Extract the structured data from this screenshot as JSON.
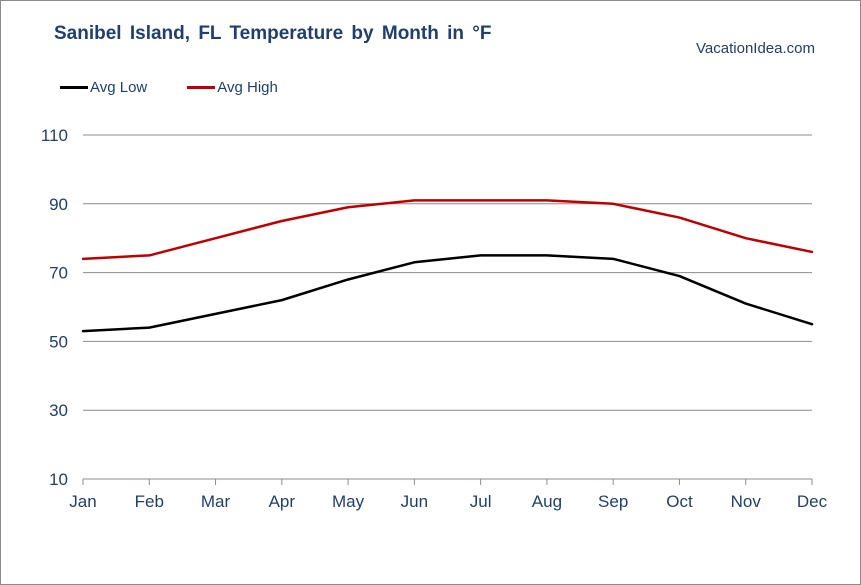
{
  "title": "Sanibel Island, FL Temperature  by Month  in °F",
  "source": "VacationIdea.com",
  "colors": {
    "avg_low": "#000000",
    "avg_high": "#c00000",
    "grid": "#8c8c8c",
    "text": "#1f3f6e"
  },
  "chart_data": {
    "type": "line",
    "categories": [
      "Jan",
      "Feb",
      "Mar",
      "Apr",
      "May",
      "Jun",
      "Jul",
      "Aug",
      "Sep",
      "Oct",
      "Nov",
      "Dec"
    ],
    "series": [
      {
        "name": "Avg Low",
        "values": [
          53,
          54,
          58,
          62,
          68,
          73,
          75,
          75,
          74,
          69,
          61,
          55
        ]
      },
      {
        "name": "Avg High",
        "values": [
          74,
          75,
          80,
          85,
          89,
          91,
          91,
          91,
          90,
          86,
          80,
          76
        ]
      }
    ],
    "yticks": [
      10,
      30,
      50,
      70,
      90,
      110
    ],
    "ylim": [
      10,
      110
    ],
    "grid": true,
    "legend_position": "top-left"
  }
}
